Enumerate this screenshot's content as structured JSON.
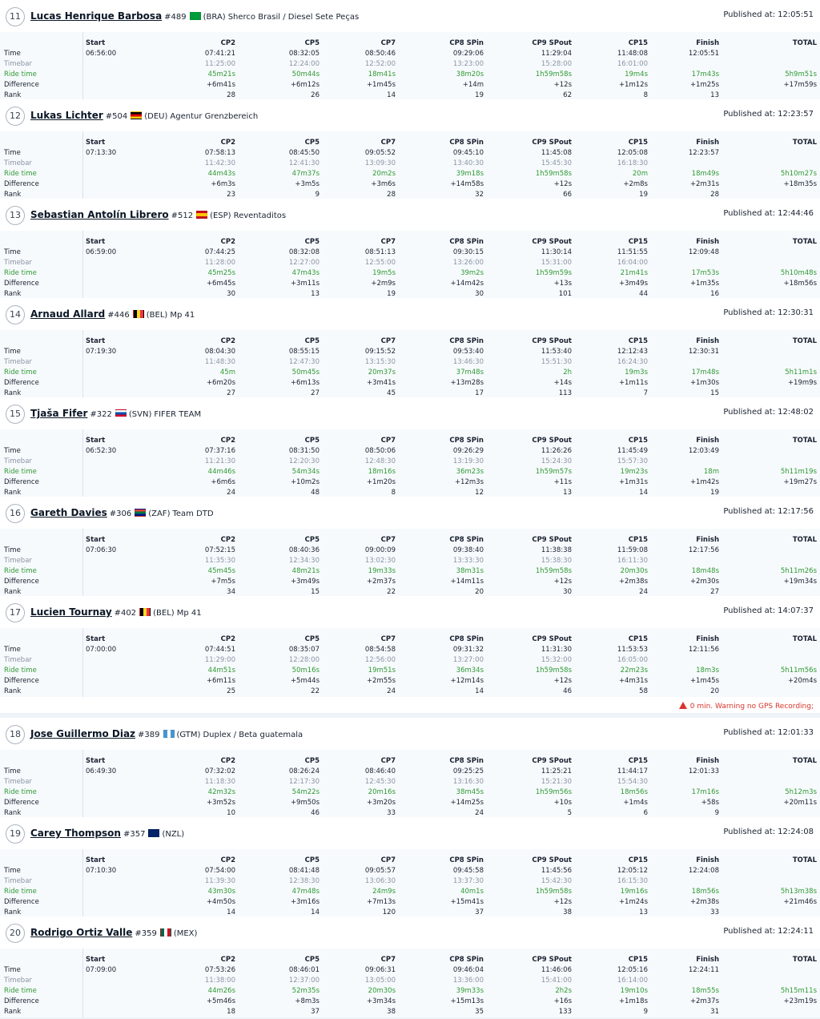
{
  "columns": [
    "Start",
    "CP2",
    "CP5",
    "CP7",
    "CP8 SPin",
    "CP9 SPout",
    "CP15",
    "Finish",
    "TOTAL"
  ],
  "row_labels": [
    "Time",
    "Timebar",
    "Ride time",
    "Difference",
    "Rank"
  ],
  "published_label": "Published at:",
  "riders": [
    {
      "rank": "11",
      "name": "Lucas Henrique Barbosa",
      "number": "#489",
      "country": "(BRA)",
      "team": "Sherco Brasil / Diesel Sete Peças",
      "flag": "brazil",
      "published": "12:05:51",
      "time": [
        "06:56:00",
        "07:41:21",
        "08:32:05",
        "08:50:46",
        "09:29:06",
        "11:29:04",
        "11:48:08",
        "12:05:51"
      ],
      "timebar": [
        "",
        "11:25:00",
        "12:24:00",
        "12:52:00",
        "13:23:00",
        "15:28:00",
        "16:01:00",
        ""
      ],
      "ride": [
        "",
        "45m21s",
        "50m44s",
        "18m41s",
        "38m20s",
        "1h59m58s",
        "19m4s",
        "17m43s",
        "5h9m51s"
      ],
      "diff": [
        "",
        "+6m41s",
        "+6m12s",
        "+1m45s",
        "+14m",
        "+12s",
        "+1m12s",
        "+1m25s",
        "+17m59s"
      ],
      "ranks": [
        "",
        "28",
        "26",
        "14",
        "19",
        "62",
        "8",
        "13"
      ]
    },
    {
      "rank": "12",
      "name": "Lukas Lichter",
      "number": "#504",
      "country": "(DEU)",
      "team": "Agentur Grenzbereich",
      "flag": "germany",
      "published": "12:23:57",
      "time": [
        "07:13:30",
        "07:58:13",
        "08:45:50",
        "09:05:52",
        "09:45:10",
        "11:45:08",
        "12:05:08",
        "12:23:57"
      ],
      "timebar": [
        "",
        "11:42:30",
        "12:41:30",
        "13:09:30",
        "13:40:30",
        "15:45:30",
        "16:18:30",
        ""
      ],
      "ride": [
        "",
        "44m43s",
        "47m37s",
        "20m2s",
        "39m18s",
        "1h59m58s",
        "20m",
        "18m49s",
        "5h10m27s"
      ],
      "diff": [
        "",
        "+6m3s",
        "+3m5s",
        "+3m6s",
        "+14m58s",
        "+12s",
        "+2m8s",
        "+2m31s",
        "+18m35s"
      ],
      "ranks": [
        "",
        "23",
        "9",
        "28",
        "32",
        "66",
        "19",
        "28"
      ]
    },
    {
      "rank": "13",
      "name": "Sebastian Antolín Librero",
      "number": "#512",
      "country": "(ESP)",
      "team": "Reventaditos",
      "flag": "spain",
      "published": "12:44:46",
      "time": [
        "06:59:00",
        "07:44:25",
        "08:32:08",
        "08:51:13",
        "09:30:15",
        "11:30:14",
        "11:51:55",
        "12:09:48"
      ],
      "timebar": [
        "",
        "11:28:00",
        "12:27:00",
        "12:55:00",
        "13:26:00",
        "15:31:00",
        "16:04:00",
        ""
      ],
      "ride": [
        "",
        "45m25s",
        "47m43s",
        "19m5s",
        "39m2s",
        "1h59m59s",
        "21m41s",
        "17m53s",
        "5h10m48s"
      ],
      "diff": [
        "",
        "+6m45s",
        "+3m11s",
        "+2m9s",
        "+14m42s",
        "+13s",
        "+3m49s",
        "+1m35s",
        "+18m56s"
      ],
      "ranks": [
        "",
        "30",
        "13",
        "19",
        "30",
        "101",
        "44",
        "16"
      ]
    },
    {
      "rank": "14",
      "name": "Arnaud Allard",
      "number": "#446",
      "country": "(BEL)",
      "team": "Mp 41",
      "flag": "belgium",
      "published": "12:30:31",
      "time": [
        "07:19:30",
        "08:04:30",
        "08:55:15",
        "09:15:52",
        "09:53:40",
        "11:53:40",
        "12:12:43",
        "12:30:31"
      ],
      "timebar": [
        "",
        "11:48:30",
        "12:47:30",
        "13:15:30",
        "13:46:30",
        "15:51:30",
        "16:24:30",
        ""
      ],
      "ride": [
        "",
        "45m",
        "50m45s",
        "20m37s",
        "37m48s",
        "2h",
        "19m3s",
        "17m48s",
        "5h11m1s"
      ],
      "diff": [
        "",
        "+6m20s",
        "+6m13s",
        "+3m41s",
        "+13m28s",
        "+14s",
        "+1m11s",
        "+1m30s",
        "+19m9s"
      ],
      "ranks": [
        "",
        "27",
        "27",
        "45",
        "17",
        "113",
        "7",
        "15"
      ]
    },
    {
      "rank": "15",
      "name": "Tjaša Fifer",
      "number": "#322",
      "country": "(SVN)",
      "team": "FIFER TEAM",
      "flag": "slovenia",
      "published": "12:48:02",
      "time": [
        "06:52:30",
        "07:37:16",
        "08:31:50",
        "08:50:06",
        "09:26:29",
        "11:26:26",
        "11:45:49",
        "12:03:49"
      ],
      "timebar": [
        "",
        "11:21:30",
        "12:20:30",
        "12:48:30",
        "13:19:30",
        "15:24:30",
        "15:57:30",
        ""
      ],
      "ride": [
        "",
        "44m46s",
        "54m34s",
        "18m16s",
        "36m23s",
        "1h59m57s",
        "19m23s",
        "18m",
        "5h11m19s"
      ],
      "diff": [
        "",
        "+6m6s",
        "+10m2s",
        "+1m20s",
        "+12m3s",
        "+11s",
        "+1m31s",
        "+1m42s",
        "+19m27s"
      ],
      "ranks": [
        "",
        "24",
        "48",
        "8",
        "12",
        "13",
        "14",
        "19"
      ]
    },
    {
      "rank": "16",
      "name": "Gareth Davies",
      "number": "#306",
      "country": "(ZAF)",
      "team": "Team DTD",
      "flag": "southafrica",
      "published": "12:17:56",
      "time": [
        "07:06:30",
        "07:52:15",
        "08:40:36",
        "09:00:09",
        "09:38:40",
        "11:38:38",
        "11:59:08",
        "12:17:56"
      ],
      "timebar": [
        "",
        "11:35:30",
        "12:34:30",
        "13:02:30",
        "13:33:30",
        "15:38:30",
        "16:11:30",
        ""
      ],
      "ride": [
        "",
        "45m45s",
        "48m21s",
        "19m33s",
        "38m31s",
        "1h59m58s",
        "20m30s",
        "18m48s",
        "5h11m26s"
      ],
      "diff": [
        "",
        "+7m5s",
        "+3m49s",
        "+2m37s",
        "+14m11s",
        "+12s",
        "+2m38s",
        "+2m30s",
        "+19m34s"
      ],
      "ranks": [
        "",
        "34",
        "15",
        "22",
        "20",
        "30",
        "24",
        "27"
      ]
    },
    {
      "rank": "17",
      "name": "Lucien Tournay",
      "number": "#402",
      "country": "(BEL)",
      "team": "Mp 41",
      "flag": "belgium",
      "published": "14:07:37",
      "time": [
        "07:00:00",
        "07:44:51",
        "08:35:07",
        "08:54:58",
        "09:31:32",
        "11:31:30",
        "11:53:53",
        "12:11:56"
      ],
      "timebar": [
        "",
        "11:29:00",
        "12:28:00",
        "12:56:00",
        "13:27:00",
        "15:32:00",
        "16:05:00",
        ""
      ],
      "ride": [
        "",
        "44m51s",
        "50m16s",
        "19m51s",
        "36m34s",
        "1h59m58s",
        "22m23s",
        "18m3s",
        "5h11m56s"
      ],
      "diff": [
        "",
        "+6m11s",
        "+5m44s",
        "+2m55s",
        "+12m14s",
        "+12s",
        "+4m31s",
        "+1m45s",
        "+20m4s"
      ],
      "ranks": [
        "",
        "25",
        "22",
        "24",
        "14",
        "46",
        "58",
        "20"
      ],
      "warning": "0 min. Warning no GPS Recording;"
    },
    {
      "rank": "18",
      "name": "Jose Guillermo Diaz",
      "number": "#389",
      "country": "(GTM)",
      "team": "Duplex / Beta guatemala",
      "flag": "guatemala",
      "published": "12:01:33",
      "time": [
        "06:49:30",
        "07:32:02",
        "08:26:24",
        "08:46:40",
        "09:25:25",
        "11:25:21",
        "11:44:17",
        "12:01:33"
      ],
      "timebar": [
        "",
        "11:18:30",
        "12:17:30",
        "12:45:30",
        "13:16:30",
        "15:21:30",
        "15:54:30",
        ""
      ],
      "ride": [
        "",
        "42m32s",
        "54m22s",
        "20m16s",
        "38m45s",
        "1h59m56s",
        "18m56s",
        "17m16s",
        "5h12m3s"
      ],
      "diff": [
        "",
        "+3m52s",
        "+9m50s",
        "+3m20s",
        "+14m25s",
        "+10s",
        "+1m4s",
        "+58s",
        "+20m11s"
      ],
      "ranks": [
        "",
        "10",
        "46",
        "33",
        "24",
        "5",
        "6",
        "9"
      ]
    },
    {
      "rank": "19",
      "name": "Carey Thompson",
      "number": "#357",
      "country": "(NZL)",
      "team": "",
      "flag": "newzealand",
      "published": "12:24:08",
      "time": [
        "07:10:30",
        "07:54:00",
        "08:41:48",
        "09:05:57",
        "09:45:58",
        "11:45:56",
        "12:05:12",
        "12:24:08"
      ],
      "timebar": [
        "",
        "11:39:30",
        "12:38:30",
        "13:06:30",
        "13:37:30",
        "15:42:30",
        "16:15:30",
        ""
      ],
      "ride": [
        "",
        "43m30s",
        "47m48s",
        "24m9s",
        "40m1s",
        "1h59m58s",
        "19m16s",
        "18m56s",
        "5h13m38s"
      ],
      "diff": [
        "",
        "+4m50s",
        "+3m16s",
        "+7m13s",
        "+15m41s",
        "+12s",
        "+1m24s",
        "+2m38s",
        "+21m46s"
      ],
      "ranks": [
        "",
        "14",
        "14",
        "120",
        "37",
        "38",
        "13",
        "33"
      ]
    },
    {
      "rank": "20",
      "name": "Rodrigo Ortiz Valle",
      "number": "#359",
      "country": "(MEX)",
      "team": "",
      "flag": "mexico",
      "published": "12:24:11",
      "time": [
        "07:09:00",
        "07:53:26",
        "08:46:01",
        "09:06:31",
        "09:46:04",
        "11:46:06",
        "12:05:16",
        "12:24:11"
      ],
      "timebar": [
        "",
        "11:38:00",
        "12:37:00",
        "13:05:00",
        "13:36:00",
        "15:41:00",
        "16:14:00",
        ""
      ],
      "ride": [
        "",
        "44m26s",
        "52m35s",
        "20m30s",
        "39m33s",
        "2h2s",
        "19m10s",
        "18m55s",
        "5h15m11s"
      ],
      "diff": [
        "",
        "+5m46s",
        "+8m3s",
        "+3m34s",
        "+15m13s",
        "+16s",
        "+1m18s",
        "+2m37s",
        "+23m19s"
      ],
      "ranks": [
        "",
        "18",
        "37",
        "38",
        "35",
        "133",
        "9",
        "31"
      ]
    }
  ]
}
